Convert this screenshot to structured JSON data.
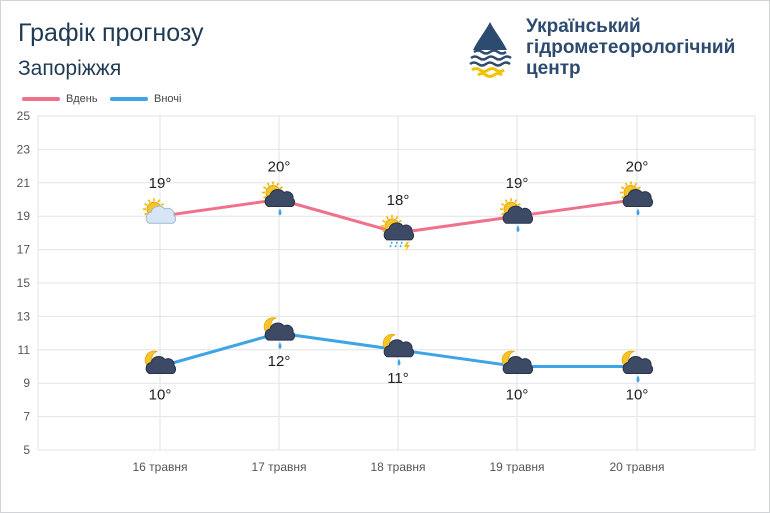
{
  "header": {
    "title": "Графік прогнозу",
    "city": "Запоріжжя",
    "org_line1": "Український",
    "org_line2": "гідрометеорологічний",
    "org_line3": "центр"
  },
  "colors": {
    "day": "#f0718b",
    "night": "#3ea4e6",
    "title": "#1f3a52",
    "grid": "#e3e3e3"
  },
  "chart_data": {
    "type": "line",
    "categories": [
      "16 травня",
      "17 травня",
      "18 травня",
      "19 травня",
      "20 травня"
    ],
    "series": [
      {
        "name": "Вдень",
        "values": [
          19,
          20,
          18,
          19,
          20
        ],
        "labels": [
          "19°",
          "20°",
          "18°",
          "19°",
          "20°"
        ],
        "icons": [
          "sun-cloud-icon",
          "sun-cloud-rain-icon",
          "sun-cloud-thunder-rain-icon",
          "sun-cloud-rain-icon",
          "sun-cloud-rain-icon"
        ]
      },
      {
        "name": "Вночі",
        "values": [
          10,
          12,
          11,
          10,
          10
        ],
        "labels": [
          "10°",
          "12°",
          "11°",
          "10°",
          "10°"
        ],
        "icons": [
          "moon-cloud-icon",
          "moon-cloud-rain-icon",
          "moon-cloud-rain-icon",
          "moon-cloud-icon",
          "moon-cloud-rain-icon"
        ]
      }
    ],
    "ylim": [
      5,
      25
    ],
    "yticks": [
      5,
      7,
      9,
      11,
      13,
      15,
      17,
      19,
      21,
      23,
      25
    ],
    "grid": true,
    "legend": "top-left"
  }
}
